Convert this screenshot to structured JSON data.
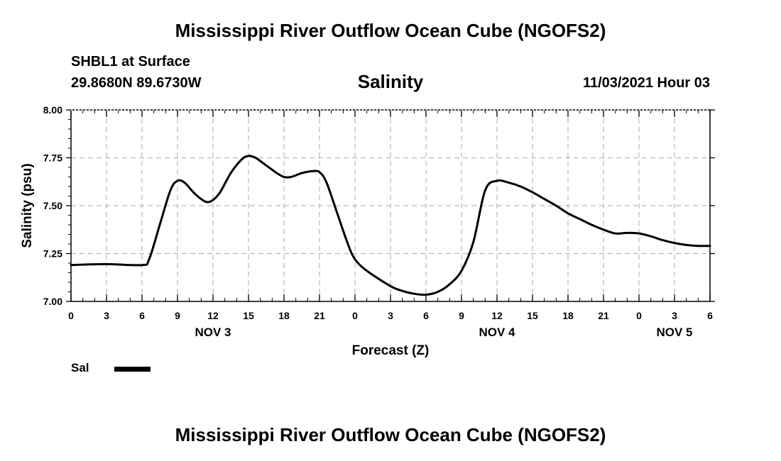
{
  "header": {
    "title": "Mississippi River Outflow Ocean Cube (NGOFS2)",
    "station": "SHBL1 at Surface",
    "coordinates": "29.8680N  89.6730W",
    "datetime": "11/03/2021 Hour 03"
  },
  "footer": {
    "title": "Mississippi River Outflow Ocean Cube (NGOFS2)"
  },
  "legend": {
    "label": "Sal",
    "color": "#000000"
  },
  "chart_data": {
    "type": "line",
    "title": "Salinity",
    "xlabel": "Forecast (Z)",
    "ylabel": "Salinity (psu)",
    "ylim": [
      7.0,
      8.0
    ],
    "xlim": [
      0,
      54
    ],
    "y_ticks": [
      7.0,
      7.25,
      7.5,
      7.75,
      8.0
    ],
    "y_tick_labels": [
      "7.00",
      "7.25",
      "7.50",
      "7.75",
      "8.00"
    ],
    "x_ticks": [
      0,
      3,
      6,
      9,
      12,
      15,
      18,
      21,
      24,
      27,
      30,
      33,
      36,
      39,
      42,
      45,
      48,
      51,
      54
    ],
    "x_tick_labels": [
      "0",
      "3",
      "6",
      "9",
      "12",
      "15",
      "18",
      "21",
      "0",
      "3",
      "6",
      "9",
      "12",
      "15",
      "18",
      "21",
      "0",
      "3",
      "6"
    ],
    "day_labels": [
      {
        "label": "NOV 3",
        "x": 12
      },
      {
        "label": "NOV 4",
        "x": 36
      },
      {
        "label": "NOV 5",
        "x": 51
      }
    ],
    "grid": true,
    "series": [
      {
        "name": "Sal",
        "color": "#000000",
        "x": [
          0,
          3,
          6,
          6.6,
          7.5,
          8.4,
          9,
          9.6,
          10.5,
          11.4,
          12,
          12.6,
          13.5,
          14.4,
          15,
          15.6,
          16.5,
          17.4,
          18,
          18.6,
          19.5,
          20.4,
          21,
          21.6,
          22.5,
          23.4,
          24,
          25,
          27,
          28,
          29,
          30,
          31,
          32,
          33,
          34,
          35,
          36,
          37,
          38,
          39,
          40,
          41,
          42,
          43,
          44,
          45,
          46,
          47,
          48,
          49,
          50,
          51,
          52,
          53,
          54
        ],
        "values": [
          7.19,
          7.195,
          7.19,
          7.22,
          7.4,
          7.58,
          7.63,
          7.62,
          7.56,
          7.52,
          7.53,
          7.57,
          7.67,
          7.74,
          7.76,
          7.75,
          7.71,
          7.67,
          7.65,
          7.65,
          7.67,
          7.68,
          7.675,
          7.62,
          7.46,
          7.3,
          7.22,
          7.16,
          7.08,
          7.055,
          7.04,
          7.035,
          7.05,
          7.09,
          7.16,
          7.31,
          7.58,
          7.63,
          7.62,
          7.6,
          7.57,
          7.535,
          7.5,
          7.46,
          7.43,
          7.4,
          7.375,
          7.355,
          7.358,
          7.355,
          7.34,
          7.32,
          7.305,
          7.295,
          7.29,
          7.29
        ]
      }
    ]
  }
}
